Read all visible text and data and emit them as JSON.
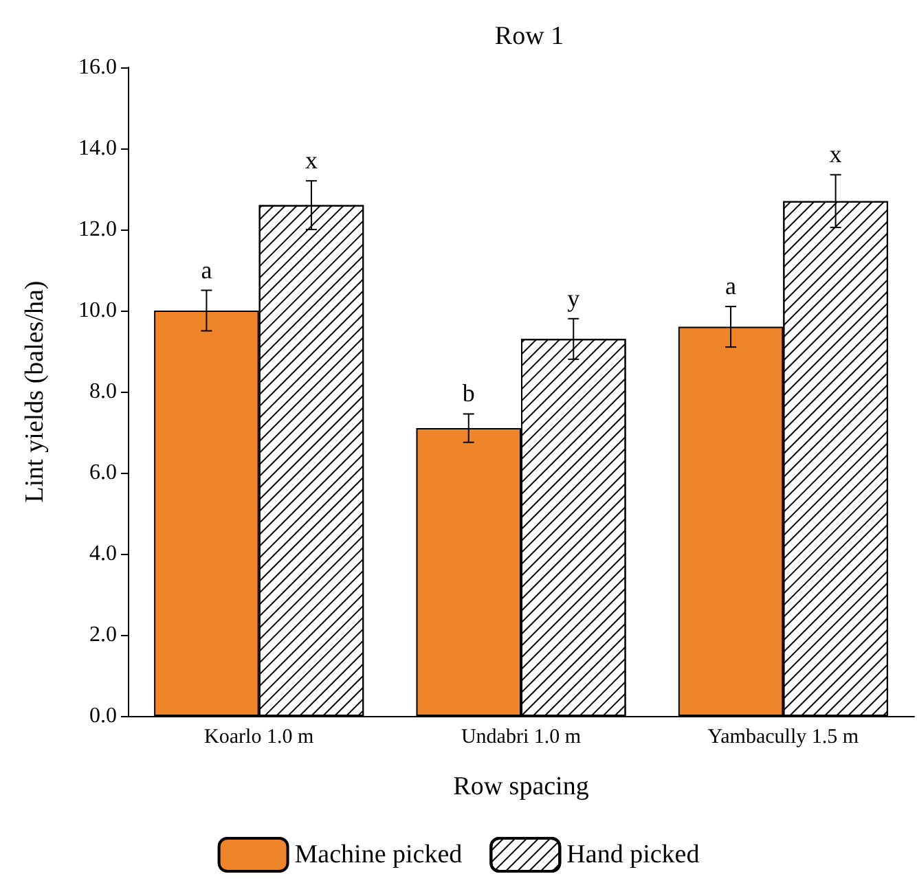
{
  "chart_data": {
    "type": "bar",
    "title": "Row 1",
    "xlabel": "Row spacing",
    "ylabel": "Lint yields (bales/ha)",
    "categories": [
      "Koarlo 1.0 m",
      "Undabri 1.0 m",
      "Yambacully 1.5 m"
    ],
    "series": [
      {
        "name": "Machine picked",
        "color": "#ef8429",
        "values": [
          10.0,
          7.1,
          9.6
        ],
        "errors": [
          0.5,
          0.35,
          0.5
        ],
        "value_labels": [
          "a",
          "b",
          "a"
        ]
      },
      {
        "name": "Hand picked",
        "color": "#ffffff",
        "values": [
          12.6,
          9.3,
          12.7
        ],
        "errors": [
          0.6,
          0.5,
          0.65
        ],
        "value_labels": [
          "x",
          "y",
          "x"
        ]
      }
    ],
    "ylim": [
      0,
      16
    ],
    "yticks": [
      {
        "value": 0,
        "label": "0.0"
      },
      {
        "value": 2,
        "label": "2.0"
      },
      {
        "value": 4,
        "label": "4.0"
      },
      {
        "value": 6,
        "label": "6.0"
      },
      {
        "value": 8,
        "label": "8.0"
      },
      {
        "value": 10,
        "label": "10.0"
      },
      {
        "value": 12,
        "label": "12.0"
      },
      {
        "value": 14,
        "label": "14.0"
      },
      {
        "value": 16,
        "label": "16.0"
      }
    ],
    "grid": false,
    "legend": "bottom"
  }
}
